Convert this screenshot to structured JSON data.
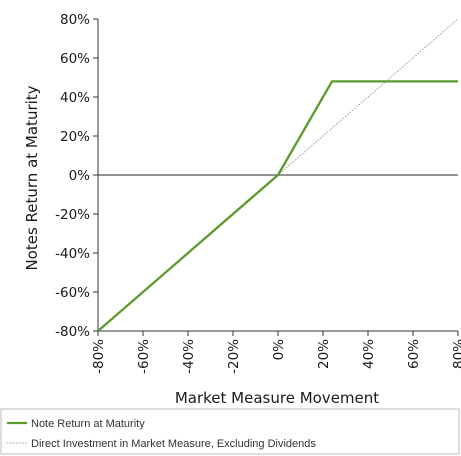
{
  "chart_data": {
    "type": "line",
    "xlabel": "Market Measure Movement",
    "ylabel": "Notes Return at Maturity",
    "xlim": [
      -80,
      80
    ],
    "ylim": [
      -80,
      80
    ],
    "x_ticks": [
      "-80%",
      "-60%",
      "-40%",
      "-20%",
      "0%",
      "20%",
      "40%",
      "60%",
      "80%"
    ],
    "y_ticks": [
      "80%",
      "60%",
      "40%",
      "20%",
      "0%",
      "-20%",
      "-40%",
      "-60%",
      "-80%"
    ],
    "grid": false,
    "legend_position": "bottom",
    "series": [
      {
        "name": "Note Return at Maturity",
        "color": "#5b9a2e",
        "style": "solid",
        "points": [
          [
            -80,
            -80
          ],
          [
            0,
            0
          ],
          [
            24,
            48
          ],
          [
            80,
            48
          ]
        ]
      },
      {
        "name": "Direct Investment in Market Measure, Excluding Dividends",
        "color": "#9a9a9a",
        "style": "dotted",
        "points": [
          [
            -80,
            -80
          ],
          [
            80,
            80
          ]
        ]
      }
    ]
  }
}
